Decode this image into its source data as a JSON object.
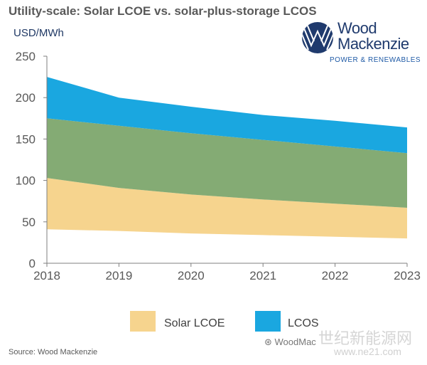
{
  "header": {
    "title": "Utility-scale: Solar LCOE vs. solar-plus-storage LCOS",
    "unit": "USD/MWh"
  },
  "logo": {
    "word1": "Wood",
    "word2": "Mackenzie",
    "subtitle": "POWER & RENEWABLES",
    "color": "#1f3a6d"
  },
  "chart_data": {
    "type": "area",
    "x": [
      "2018",
      "2019",
      "2020",
      "2021",
      "2022",
      "2023"
    ],
    "ylim": [
      0,
      250
    ],
    "yticks": [
      0,
      50,
      100,
      150,
      200,
      250
    ],
    "grid": false,
    "legend_position": "bottom",
    "series": [
      {
        "name": "Solar LCOE",
        "color": "#f6d48e",
        "low": [
          41,
          39,
          36,
          34,
          32,
          30
        ],
        "high": [
          103,
          91,
          83,
          77,
          72,
          67
        ]
      },
      {
        "name": "",
        "color": "#84ab74",
        "low": [
          103,
          91,
          83,
          77,
          72,
          67
        ],
        "high": [
          175,
          166,
          157,
          149,
          141,
          133
        ]
      },
      {
        "name": "LCOS",
        "color": "#1aa7e0",
        "low": [
          175,
          166,
          157,
          149,
          141,
          133
        ],
        "high": [
          225,
          200,
          189,
          179,
          172,
          164
        ]
      }
    ]
  },
  "legend": {
    "solar_label": "Solar LCOE",
    "lcos_label": "LCOS"
  },
  "footer": {
    "source": "Source: Wood Mackenzie",
    "wechat": "WoodMac",
    "watermark": "世纪新能源网",
    "watermark_url": "www.ne21.com"
  }
}
